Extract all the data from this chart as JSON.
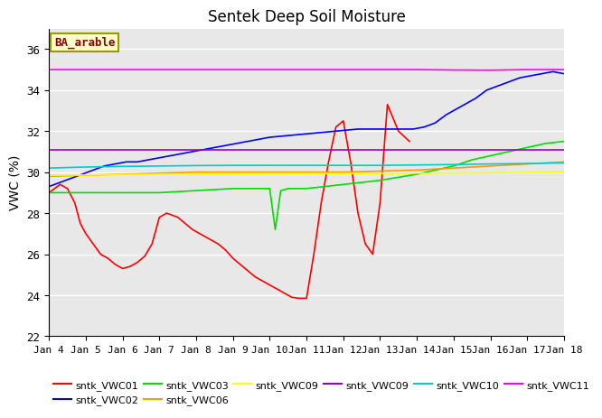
{
  "title": "Sentek Deep Soil Moisture",
  "ylabel": "VWC (%)",
  "annotation": "BA_arable",
  "ylim": [
    22,
    37
  ],
  "yticks": [
    22,
    24,
    26,
    28,
    30,
    32,
    34,
    36
  ],
  "xlim": [
    0,
    14
  ],
  "xtick_labels": [
    "Jan 4",
    "Jan 5",
    "Jan 6",
    "Jan 7",
    "Jan 8",
    "Jan 9",
    "Jan 10",
    "Jan 11",
    "Jan 12",
    "Jan 13",
    "Jan 14",
    "Jan 15",
    "Jan 16",
    "Jan 17",
    "Jan 18"
  ],
  "background_color": "#e8e8e8",
  "grid_color": "#ffffff",
  "series": [
    {
      "key": "sntk_VWC01",
      "color": "#ff0000",
      "label": "sntk_VWC01",
      "x": [
        0.0,
        0.15,
        0.3,
        0.5,
        0.7,
        0.85,
        1.0,
        1.2,
        1.4,
        1.6,
        1.8,
        2.0,
        2.2,
        2.4,
        2.6,
        2.8,
        3.0,
        3.2,
        3.5,
        3.7,
        3.9,
        4.1,
        4.3,
        4.6,
        4.8,
        5.0,
        5.2,
        5.4,
        5.6,
        5.8,
        6.0,
        6.2,
        6.4,
        6.6,
        6.8,
        7.0,
        7.2,
        7.4,
        7.6,
        7.8,
        8.0,
        8.2,
        8.4,
        8.6,
        8.8,
        9.0,
        9.2,
        9.5,
        9.8
      ],
      "y": [
        29.0,
        29.2,
        29.4,
        29.2,
        28.5,
        27.5,
        27.0,
        26.5,
        26.0,
        25.8,
        25.5,
        25.3,
        25.4,
        25.6,
        25.9,
        26.5,
        27.8,
        28.0,
        27.8,
        27.5,
        27.2,
        27.0,
        26.8,
        26.5,
        26.2,
        25.8,
        25.5,
        25.2,
        24.9,
        24.7,
        24.5,
        24.3,
        24.1,
        23.9,
        23.85,
        23.85,
        26.0,
        28.5,
        30.5,
        32.2,
        32.5,
        30.5,
        28.0,
        26.5,
        26.0,
        28.5,
        33.3,
        32.0,
        31.5
      ]
    },
    {
      "key": "sntk_VWC02",
      "color": "#0000ff",
      "label": "sntk_VWC02",
      "x": [
        0.0,
        0.3,
        0.6,
        0.9,
        1.2,
        1.5,
        1.8,
        2.1,
        2.4,
        2.7,
        3.0,
        3.3,
        3.6,
        3.9,
        4.2,
        4.5,
        4.8,
        5.1,
        5.4,
        5.7,
        6.0,
        6.3,
        6.6,
        6.9,
        7.2,
        7.5,
        7.8,
        8.1,
        8.4,
        8.7,
        9.0,
        9.3,
        9.6,
        9.9,
        10.2,
        10.5,
        10.8,
        11.0,
        11.3,
        11.6,
        11.9,
        12.2,
        12.5,
        12.8,
        13.1,
        13.4,
        13.7,
        14.0
      ],
      "y": [
        29.3,
        29.5,
        29.7,
        29.9,
        30.1,
        30.3,
        30.4,
        30.5,
        30.5,
        30.6,
        30.7,
        30.8,
        30.9,
        31.0,
        31.1,
        31.2,
        31.3,
        31.4,
        31.5,
        31.6,
        31.7,
        31.75,
        31.8,
        31.85,
        31.9,
        31.95,
        32.0,
        32.05,
        32.1,
        32.1,
        32.1,
        32.1,
        32.1,
        32.1,
        32.2,
        32.4,
        32.8,
        33.0,
        33.3,
        33.6,
        34.0,
        34.2,
        34.4,
        34.6,
        34.7,
        34.8,
        34.9,
        34.8
      ]
    },
    {
      "key": "sntk_VWC03",
      "color": "#00dd00",
      "label": "sntk_VWC03",
      "x": [
        0.0,
        0.5,
        1.0,
        1.5,
        2.0,
        2.5,
        3.0,
        3.5,
        4.0,
        4.5,
        5.0,
        5.5,
        6.0,
        6.15,
        6.3,
        6.5,
        7.0,
        7.5,
        8.0,
        8.5,
        9.0,
        9.5,
        10.0,
        10.5,
        11.0,
        11.5,
        12.0,
        12.5,
        13.0,
        13.5,
        14.0
      ],
      "y": [
        29.0,
        29.0,
        29.0,
        29.0,
        29.0,
        29.0,
        29.0,
        29.05,
        29.1,
        29.15,
        29.2,
        29.2,
        29.2,
        27.2,
        29.1,
        29.2,
        29.2,
        29.3,
        29.4,
        29.5,
        29.6,
        29.75,
        29.9,
        30.1,
        30.3,
        30.6,
        30.8,
        31.0,
        31.2,
        31.4,
        31.5
      ]
    },
    {
      "key": "sntk_VWC06",
      "color": "#ff9900",
      "label": "sntk_VWC06",
      "x": [
        0.0,
        1.0,
        2.0,
        3.0,
        4.0,
        5.0,
        6.0,
        7.0,
        8.0,
        9.0,
        10.0,
        10.5,
        11.0,
        11.5,
        12.0,
        12.5,
        13.0,
        13.5,
        14.0
      ],
      "y": [
        29.8,
        29.85,
        29.9,
        29.95,
        30.0,
        30.0,
        30.0,
        30.0,
        30.0,
        30.05,
        30.1,
        30.15,
        30.2,
        30.25,
        30.3,
        30.35,
        30.4,
        30.45,
        30.5
      ]
    },
    {
      "key": "sntk_VWC09_yellow",
      "color": "#ffff00",
      "label": "sntk_VWC09",
      "x": [
        0.0,
        2.0,
        4.0,
        6.0,
        8.0,
        10.0,
        12.0,
        14.0
      ],
      "y": [
        29.85,
        29.88,
        29.9,
        29.92,
        29.93,
        29.95,
        29.97,
        30.0
      ]
    },
    {
      "key": "sntk_VWC09_purple",
      "color": "#9900cc",
      "label": "sntk_VWC09",
      "x": [
        0.0,
        2.0,
        4.0,
        6.0,
        8.0,
        9.5,
        10.0,
        11.0,
        12.0,
        13.0,
        14.0
      ],
      "y": [
        31.1,
        31.1,
        31.1,
        31.1,
        31.1,
        31.1,
        31.1,
        31.1,
        31.1,
        31.1,
        31.1
      ]
    },
    {
      "key": "sntk_VWC10",
      "color": "#00cccc",
      "label": "sntk_VWC10",
      "x": [
        0.0,
        1.0,
        2.0,
        3.0,
        4.0,
        5.0,
        6.0,
        7.0,
        8.0,
        9.0,
        10.0,
        11.0,
        12.0,
        13.0,
        14.0
      ],
      "y": [
        30.2,
        30.25,
        30.28,
        30.3,
        30.32,
        30.33,
        30.33,
        30.33,
        30.33,
        30.33,
        30.35,
        30.37,
        30.4,
        30.42,
        30.45
      ]
    },
    {
      "key": "sntk_VWC11",
      "color": "#ff00ff",
      "label": "sntk_VWC11",
      "x": [
        0.0,
        1.0,
        2.0,
        3.0,
        4.0,
        5.0,
        6.0,
        7.0,
        8.0,
        9.0,
        10.0,
        11.0,
        12.0,
        13.0,
        14.0
      ],
      "y": [
        35.0,
        35.0,
        35.0,
        35.0,
        35.0,
        35.0,
        35.0,
        35.0,
        35.0,
        35.0,
        35.0,
        34.98,
        34.97,
        35.0,
        35.0
      ]
    }
  ],
  "legend_entries": [
    {
      "color": "#ff0000",
      "label": "sntk_VWC01"
    },
    {
      "color": "#0000ff",
      "label": "sntk_VWC02"
    },
    {
      "color": "#00dd00",
      "label": "sntk_VWC03"
    },
    {
      "color": "#ff9900",
      "label": "sntk_VWC06"
    },
    {
      "color": "#ffff00",
      "label": "sntk_VWC09"
    },
    {
      "color": "#9900cc",
      "label": "sntk_VWC09"
    },
    {
      "color": "#00cccc",
      "label": "sntk_VWC10"
    },
    {
      "color": "#ff00ff",
      "label": "sntk_VWC11"
    }
  ]
}
